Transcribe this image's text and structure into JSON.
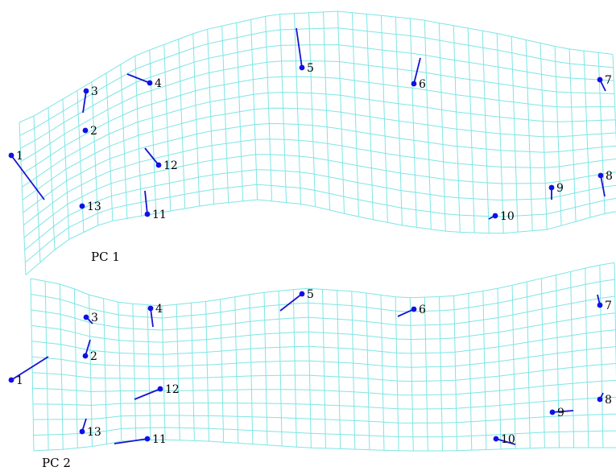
{
  "colors": {
    "grid": "#7fe5e5",
    "landmark": "#1010e6",
    "vector": "#1414d2",
    "text": "#000000"
  },
  "panels": [
    {
      "label": "PC 1",
      "landmarks": [
        {
          "id": "1",
          "label": "1"
        },
        {
          "id": "2",
          "label": "2"
        },
        {
          "id": "3",
          "label": "3"
        },
        {
          "id": "4",
          "label": "4"
        },
        {
          "id": "5",
          "label": "5"
        },
        {
          "id": "6",
          "label": "6"
        },
        {
          "id": "7",
          "label": "7"
        },
        {
          "id": "8",
          "label": "8"
        },
        {
          "id": "9",
          "label": "9"
        },
        {
          "id": "10",
          "label": "10"
        },
        {
          "id": "11",
          "label": "11"
        },
        {
          "id": "12",
          "label": "12"
        },
        {
          "id": "13",
          "label": "13"
        }
      ]
    },
    {
      "label": "PC 2",
      "landmarks": [
        {
          "id": "1",
          "label": "1"
        },
        {
          "id": "2",
          "label": "2"
        },
        {
          "id": "3",
          "label": "3"
        },
        {
          "id": "4",
          "label": "4"
        },
        {
          "id": "5",
          "label": "5"
        },
        {
          "id": "6",
          "label": "6"
        },
        {
          "id": "7",
          "label": "7"
        },
        {
          "id": "8",
          "label": "8"
        },
        {
          "id": "9",
          "label": "9"
        },
        {
          "id": "10",
          "label": "10"
        },
        {
          "id": "11",
          "label": "11"
        },
        {
          "id": "12",
          "label": "12"
        },
        {
          "id": "13",
          "label": "13"
        }
      ]
    }
  ]
}
